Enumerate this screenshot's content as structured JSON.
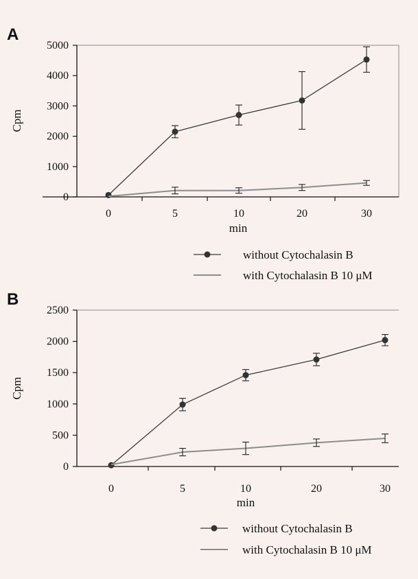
{
  "chart_data": [
    {
      "panel_label": "A",
      "type": "line",
      "categories": [
        "0",
        "5",
        "10",
        "20",
        "30"
      ],
      "xlabel": "min",
      "ylabel": "Cpm",
      "ylim": [
        0,
        5000
      ],
      "yticks": [
        0,
        1000,
        2000,
        3000,
        4000,
        5000
      ],
      "grid": false,
      "legend_position": "bottom-right",
      "series": [
        {
          "name": "without Cytochalasin B",
          "color": "#3a3a3a",
          "marker": "circle",
          "values": [
            60,
            2150,
            2700,
            3180,
            4530
          ],
          "errors": [
            30,
            200,
            330,
            950,
            420
          ]
        },
        {
          "name": "with Cytochalasin B 10 μM",
          "color": "#8c8c8c",
          "marker": "none",
          "values": [
            20,
            210,
            210,
            310,
            460
          ],
          "errors": [
            10,
            110,
            90,
            100,
            80
          ]
        }
      ]
    },
    {
      "panel_label": "B",
      "type": "line",
      "categories": [
        "0",
        "5",
        "10",
        "20",
        "30"
      ],
      "xlabel": "min",
      "ylabel": "Cpm",
      "ylim": [
        0,
        2500
      ],
      "yticks": [
        0,
        500,
        1000,
        1500,
        2000,
        2500
      ],
      "grid": false,
      "legend_position": "bottom-right",
      "series": [
        {
          "name": "without Cytochalasin B",
          "color": "#3a3a3a",
          "marker": "circle",
          "values": [
            20,
            990,
            1460,
            1710,
            2020
          ],
          "errors": [
            10,
            100,
            90,
            100,
            90
          ]
        },
        {
          "name": "with Cytochalasin B 10 μM",
          "color": "#8c8c8c",
          "marker": "none",
          "values": [
            30,
            230,
            290,
            380,
            450
          ],
          "errors": [
            10,
            60,
            100,
            60,
            70
          ]
        }
      ]
    }
  ]
}
